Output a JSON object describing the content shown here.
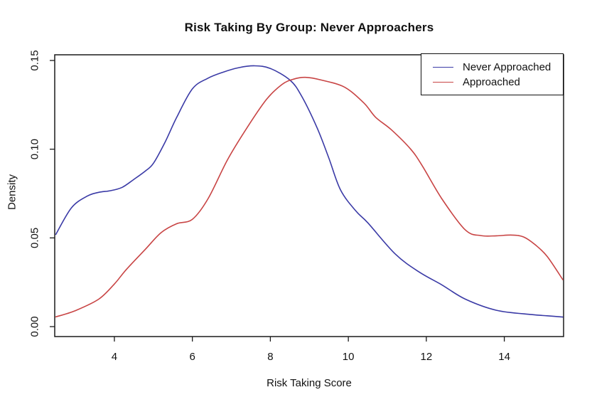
{
  "chart_data": {
    "type": "line",
    "title": "Risk Taking By Group: Never Approachers",
    "xlabel": "Risk Taking Score",
    "ylabel": "Density",
    "xlim": [
      2.47,
      15.52
    ],
    "ylim": [
      -0.0056,
      0.1532
    ],
    "xticks": [
      4,
      6,
      8,
      10,
      12,
      14
    ],
    "yticks": [
      0,
      0.05,
      0.1,
      0.15
    ],
    "ytick_labels": [
      "0.00",
      "0.05",
      "0.10",
      "0.15"
    ],
    "grid": false,
    "legend_position": "topright",
    "series": [
      {
        "name": "Never Approached",
        "color": "#3A3AA6",
        "x": [
          2.5,
          2.9,
          3.3,
          3.6,
          3.9,
          4.2,
          4.5,
          4.8,
          5.0,
          5.3,
          5.6,
          6.0,
          6.4,
          6.8,
          7.2,
          7.6,
          8.0,
          8.5,
          8.8,
          9.2,
          9.5,
          9.8,
          10.2,
          10.5,
          11.2,
          11.8,
          12.4,
          13.0,
          13.8,
          14.7,
          15.1,
          15.5
        ],
        "y": [
          0.052,
          0.067,
          0.0735,
          0.0757,
          0.0766,
          0.0785,
          0.083,
          0.0878,
          0.092,
          0.104,
          0.118,
          0.134,
          0.14,
          0.1435,
          0.146,
          0.147,
          0.1455,
          0.139,
          0.13,
          0.112,
          0.095,
          0.077,
          0.065,
          0.0585,
          0.041,
          0.031,
          0.0235,
          0.0155,
          0.0092,
          0.0068,
          0.0061,
          0.0054
        ]
      },
      {
        "name": "Approached",
        "color": "#C84444",
        "x": [
          2.5,
          3.0,
          3.6,
          4.0,
          4.3,
          4.8,
          5.2,
          5.6,
          6.0,
          6.4,
          6.9,
          7.4,
          7.9,
          8.3,
          8.6,
          8.9,
          9.3,
          9.9,
          10.4,
          10.7,
          11.1,
          11.6,
          11.9,
          12.4,
          13.0,
          13.4,
          13.8,
          14.2,
          14.5,
          14.8,
          15.1,
          15.5
        ],
        "y": [
          0.0055,
          0.009,
          0.0155,
          0.024,
          0.032,
          0.0437,
          0.053,
          0.058,
          0.0605,
          0.072,
          0.094,
          0.112,
          0.128,
          0.1365,
          0.1395,
          0.1405,
          0.139,
          0.135,
          0.126,
          0.118,
          0.111,
          0.1,
          0.0905,
          0.072,
          0.0545,
          0.0513,
          0.0512,
          0.0516,
          0.0505,
          0.046,
          0.0395,
          0.0265
        ]
      }
    ],
    "frame_color": "#1a1a1a",
    "text_color": "#111111",
    "background": "#ffffff"
  }
}
